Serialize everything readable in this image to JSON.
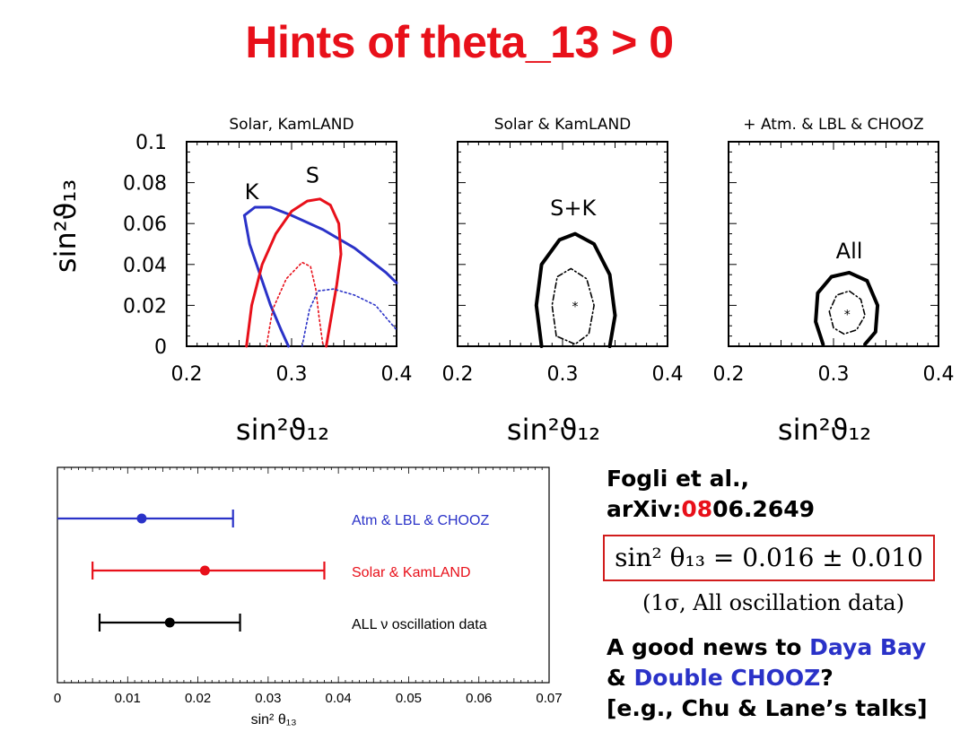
{
  "title": "Hints of theta_13 > 0",
  "reference": {
    "authors": "Fogli et al.,",
    "arxiv_prefix": "arXiv:",
    "arxiv_highlight": "08",
    "arxiv_rest": "06.2649"
  },
  "result": {
    "equation": "sin² θ₁₃ = 0.016 ± 0.010",
    "note": "(1σ,  All oscillation data)"
  },
  "news": {
    "line1_prefix": "A good news to ",
    "line1_highlight": "Daya Bay",
    "line2_prefix": "& ",
    "line2_highlight": "Double CHOOZ",
    "line2_suffix": "?",
    "line3": "[e.g., Chu & Lane’s talks]"
  },
  "colors": {
    "red": "#e8101a",
    "blue": "#2a32c8",
    "black": "#000000"
  },
  "chart_data": [
    {
      "type": "scatter",
      "panel": "contour",
      "title": "Solar,  KamLAND",
      "xlabel": "sin²ϑ₁₂",
      "ylabel": "sin²ϑ₁₃",
      "xlim": [
        0.2,
        0.4
      ],
      "ylim": [
        0,
        0.1
      ],
      "x_ticks": [
        "0.2",
        "0.3",
        "0.4"
      ],
      "y_ticks": [
        "0",
        "0.02",
        "0.04",
        "0.06",
        "0.08",
        "0.1"
      ],
      "labels": [
        {
          "text": "K",
          "x": 0.262,
          "y": 0.072
        },
        {
          "text": "S",
          "x": 0.32,
          "y": 0.08
        }
      ],
      "series": [
        {
          "name": "K",
          "color": "#2a32c8",
          "style": "solid",
          "points": [
            [
              0.255,
              0.064
            ],
            [
              0.265,
              0.068
            ],
            [
              0.28,
              0.068
            ],
            [
              0.3,
              0.064
            ],
            [
              0.33,
              0.057
            ],
            [
              0.36,
              0.048
            ],
            [
              0.39,
              0.036
            ],
            [
              0.4,
              0.031
            ]
          ]
        },
        {
          "name": "K",
          "color": "#2a32c8",
          "style": "solid",
          "points": [
            [
              0.255,
              0.064
            ],
            [
              0.26,
              0.05
            ],
            [
              0.27,
              0.035
            ],
            [
              0.28,
              0.02
            ],
            [
              0.29,
              0.008
            ],
            [
              0.297,
              0.0
            ]
          ]
        },
        {
          "name": "S",
          "color": "#e8101a",
          "style": "solid",
          "closed": true,
          "points": [
            [
              0.257,
              0.0
            ],
            [
              0.262,
              0.02
            ],
            [
              0.272,
              0.04
            ],
            [
              0.285,
              0.055
            ],
            [
              0.3,
              0.066
            ],
            [
              0.315,
              0.071
            ],
            [
              0.327,
              0.072
            ],
            [
              0.337,
              0.069
            ],
            [
              0.345,
              0.06
            ],
            [
              0.347,
              0.045
            ],
            [
              0.343,
              0.03
            ],
            [
              0.337,
              0.012
            ],
            [
              0.333,
              0.0
            ]
          ]
        },
        {
          "name": "S",
          "color": "#e8101a",
          "style": "dotted",
          "points": [
            [
              0.276,
              0.0
            ],
            [
              0.282,
              0.018
            ],
            [
              0.295,
              0.033
            ],
            [
              0.31,
              0.041
            ],
            [
              0.318,
              0.039
            ],
            [
              0.323,
              0.028
            ],
            [
              0.326,
              0.015
            ],
            [
              0.33,
              0.0
            ]
          ]
        },
        {
          "name": "K",
          "color": "#2a32c8",
          "style": "dotted",
          "points": [
            [
              0.31,
              0.0
            ],
            [
              0.317,
              0.018
            ],
            [
              0.325,
              0.027
            ],
            [
              0.34,
              0.028
            ],
            [
              0.36,
              0.025
            ],
            [
              0.38,
              0.02
            ],
            [
              0.4,
              0.008
            ]
          ]
        }
      ]
    },
    {
      "type": "scatter",
      "panel": "contour",
      "title": "Solar  &  KamLAND",
      "xlabel": "sin²ϑ₁₂",
      "xlim": [
        0.2,
        0.4
      ],
      "ylim": [
        0,
        0.1
      ],
      "x_ticks": [
        "0.2",
        "0.3",
        "0.4"
      ],
      "labels": [
        {
          "text": "S+K",
          "x": 0.31,
          "y": 0.064
        }
      ],
      "best_fit": [
        0.312,
        0.02
      ],
      "series": [
        {
          "name": "S+K",
          "color": "#000000",
          "style": "thick",
          "points": [
            [
              0.28,
              0.0
            ],
            [
              0.275,
              0.02
            ],
            [
              0.28,
              0.04
            ],
            [
              0.297,
              0.052
            ],
            [
              0.312,
              0.055
            ],
            [
              0.33,
              0.05
            ],
            [
              0.345,
              0.035
            ],
            [
              0.35,
              0.015
            ],
            [
              0.345,
              0.0
            ]
          ]
        },
        {
          "name": "S+K",
          "color": "#000000",
          "style": "dashdot",
          "closed": true,
          "points": [
            [
              0.294,
              0.005
            ],
            [
              0.29,
              0.02
            ],
            [
              0.295,
              0.034
            ],
            [
              0.308,
              0.038
            ],
            [
              0.323,
              0.033
            ],
            [
              0.33,
              0.02
            ],
            [
              0.325,
              0.006
            ],
            [
              0.312,
              0.001
            ]
          ]
        }
      ]
    },
    {
      "type": "scatter",
      "panel": "contour",
      "title": "+  Atm.  &  LBL  &  CHOOZ",
      "xlabel": "sin²ϑ₁₂",
      "xlim": [
        0.2,
        0.4
      ],
      "ylim": [
        0,
        0.1
      ],
      "x_ticks": [
        "0.2",
        "0.3",
        "0.4"
      ],
      "labels": [
        {
          "text": "All",
          "x": 0.315,
          "y": 0.043
        }
      ],
      "best_fit": [
        0.313,
        0.016
      ],
      "series": [
        {
          "name": "All",
          "color": "#000000",
          "style": "thick",
          "points": [
            [
              0.29,
              0.001
            ],
            [
              0.283,
              0.012
            ],
            [
              0.285,
              0.026
            ],
            [
              0.298,
              0.034
            ],
            [
              0.315,
              0.036
            ],
            [
              0.332,
              0.032
            ],
            [
              0.342,
              0.02
            ],
            [
              0.34,
              0.007
            ],
            [
              0.33,
              0.001
            ]
          ]
        },
        {
          "name": "All",
          "color": "#000000",
          "style": "dashdot",
          "closed": true,
          "points": [
            [
              0.3,
              0.009
            ],
            [
              0.296,
              0.017
            ],
            [
              0.303,
              0.025
            ],
            [
              0.315,
              0.027
            ],
            [
              0.326,
              0.023
            ],
            [
              0.33,
              0.015
            ],
            [
              0.322,
              0.008
            ],
            [
              0.31,
              0.006
            ]
          ]
        }
      ]
    },
    {
      "type": "scatter",
      "panel": "errorbar",
      "xlabel": "sin² θ₁₃",
      "xlim": [
        0,
        0.07
      ],
      "x_ticks": [
        "0",
        "0.01",
        "0.02",
        "0.03",
        "0.04",
        "0.05",
        "0.06",
        "0.07"
      ],
      "series": [
        {
          "name": "Atm & LBL & CHOOZ",
          "color": "#2a32c8",
          "value": 0.012,
          "low": 0.0,
          "high": 0.025
        },
        {
          "name": "Solar & KamLAND",
          "color": "#e8101a",
          "value": 0.021,
          "low": 0.005,
          "high": 0.038
        },
        {
          "name": "ALL ν oscillation data",
          "color": "#000000",
          "value": 0.016,
          "low": 0.006,
          "high": 0.026
        }
      ]
    }
  ]
}
